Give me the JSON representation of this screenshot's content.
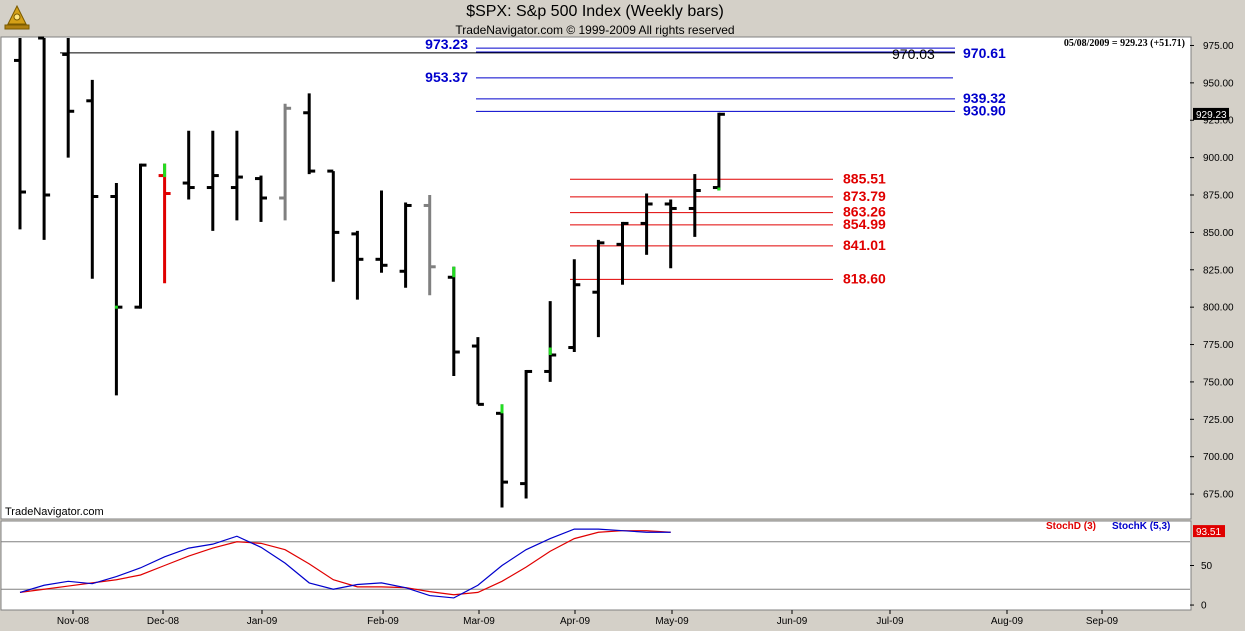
{
  "chart_data": {
    "type": "ohlc",
    "title": "$SPX:  S&p 500 Index  (Weekly bars)",
    "subtitle": "TradeNavigator.com © 1999-2009 All rights reserved",
    "watermark": "TradeNavigator.com",
    "info": "05/08/2009 = 929.23 (+51.71)",
    "last_price": "929.23",
    "ylim": [
      659,
      980
    ],
    "yticks": [
      675,
      700,
      725,
      750,
      775,
      800,
      825,
      850,
      875,
      900,
      925,
      950,
      975
    ],
    "xlabels": [
      "Nov-08",
      "Dec-08",
      "Jan-09",
      "Feb-09",
      "Mar-09",
      "Apr-09",
      "May-09",
      "Jun-09",
      "Jul-09",
      "Aug-09",
      "Sep-09"
    ],
    "bars": [
      {
        "o": 965,
        "h": 980,
        "l": 852,
        "c": 877,
        "color": "#000000"
      },
      {
        "o": 980,
        "h": 980,
        "l": 845,
        "c": 875,
        "color": "#000000"
      },
      {
        "o": 969,
        "h": 980,
        "l": 900,
        "c": 931,
        "color": "#000000"
      },
      {
        "o": 938,
        "h": 952,
        "l": 819,
        "c": 874,
        "color": "#000000"
      },
      {
        "o": 874,
        "h": 883,
        "l": 741,
        "c": 800,
        "color": "#000000"
      },
      {
        "o": 800,
        "h": 896,
        "l": 799,
        "c": 895,
        "color": "#000000"
      },
      {
        "o": 888,
        "h": 896,
        "l": 816,
        "c": 876,
        "color": "#e00000"
      },
      {
        "o": 883,
        "h": 918,
        "l": 872,
        "c": 880,
        "color": "#000000"
      },
      {
        "o": 880,
        "h": 918,
        "l": 851,
        "c": 888,
        "color": "#000000"
      },
      {
        "o": 880,
        "h": 918,
        "l": 858,
        "c": 887,
        "color": "#000000"
      },
      {
        "o": 886,
        "h": 888,
        "l": 857,
        "c": 873,
        "color": "#000000"
      },
      {
        "o": 873,
        "h": 936,
        "l": 858,
        "c": 933,
        "color": "#808080"
      },
      {
        "o": 930,
        "h": 943,
        "l": 889,
        "c": 891,
        "color": "#000000"
      },
      {
        "o": 891,
        "h": 891,
        "l": 817,
        "c": 850,
        "color": "#000000"
      },
      {
        "o": 849,
        "h": 851,
        "l": 805,
        "c": 832,
        "color": "#000000"
      },
      {
        "o": 832,
        "h": 878,
        "l": 823,
        "c": 828,
        "color": "#000000"
      },
      {
        "o": 824,
        "h": 870,
        "l": 813,
        "c": 868,
        "color": "#000000"
      },
      {
        "o": 868,
        "h": 875,
        "l": 808,
        "c": 827,
        "color": "#808080"
      },
      {
        "o": 820,
        "h": 827,
        "l": 754,
        "c": 770,
        "color": "#000000"
      },
      {
        "o": 774,
        "h": 780,
        "l": 735,
        "c": 735,
        "color": "#000000"
      },
      {
        "o": 729,
        "h": 735,
        "l": 666,
        "c": 683,
        "color": "#000000"
      },
      {
        "o": 682,
        "h": 758,
        "l": 672,
        "c": 757,
        "color": "#000000"
      },
      {
        "o": 757,
        "h": 804,
        "l": 750,
        "c": 768,
        "color": "#000000"
      },
      {
        "o": 773,
        "h": 832,
        "l": 770,
        "c": 815,
        "color": "#000000"
      },
      {
        "o": 810,
        "h": 845,
        "l": 780,
        "c": 843,
        "color": "#000000"
      },
      {
        "o": 842,
        "h": 857,
        "l": 815,
        "c": 856,
        "color": "#000000"
      },
      {
        "o": 856,
        "h": 876,
        "l": 835,
        "c": 869,
        "color": "#000000"
      },
      {
        "o": 869,
        "h": 872,
        "l": 826,
        "c": 866,
        "color": "#000000"
      },
      {
        "o": 866,
        "h": 889,
        "l": 847,
        "c": 878,
        "color": "#000000"
      },
      {
        "o": 880,
        "h": 930,
        "l": 878,
        "c": 929,
        "color": "#000000"
      }
    ],
    "green_ticks": [
      {
        "bar": 4,
        "from": 799,
        "to": 801
      },
      {
        "bar": 6,
        "from": 887,
        "to": 896
      },
      {
        "bar": 18,
        "from": 820,
        "to": 827
      },
      {
        "bar": 20,
        "from": 729,
        "to": 735
      },
      {
        "bar": 22,
        "from": 768,
        "to": 773
      },
      {
        "bar": 29,
        "from": 878,
        "to": 880
      }
    ],
    "levels": [
      {
        "value": 973.23,
        "label": "973.23",
        "side": "left",
        "color": "#0000cc"
      },
      {
        "value": 970.61,
        "label": "970.61",
        "side": "right",
        "color": "#0000cc"
      },
      {
        "value": 970.03,
        "label": "970.03",
        "side": "mid",
        "color": "#000000"
      },
      {
        "value": 953.37,
        "label": "953.37",
        "side": "left",
        "color": "#0000cc"
      },
      {
        "value": 939.32,
        "label": "939.32",
        "side": "right",
        "color": "#0000cc"
      },
      {
        "value": 930.9,
        "label": "930.90",
        "side": "right",
        "color": "#0000cc"
      },
      {
        "value": 885.51,
        "label": "885.51",
        "side": "right",
        "color": "#e00000"
      },
      {
        "value": 873.79,
        "label": "873.79",
        "side": "right",
        "color": "#e00000"
      },
      {
        "value": 863.26,
        "label": "863.26",
        "side": "right",
        "color": "#e00000"
      },
      {
        "value": 854.99,
        "label": "854.99",
        "side": "right",
        "color": "#e00000"
      },
      {
        "value": 841.01,
        "label": "841.01",
        "side": "right",
        "color": "#e00000"
      },
      {
        "value": 818.6,
        "label": "818.60",
        "side": "right",
        "color": "#e00000"
      }
    ],
    "stoch": {
      "yticks": [
        0,
        50
      ],
      "ref_lines": [
        80,
        20
      ],
      "last_value": "93.51",
      "d_label": "StochD (3)",
      "k_label": "StochK (5,3)",
      "d_color": "#e00000",
      "k_color": "#0000cc",
      "stoch_k": [
        16,
        25,
        30,
        27,
        36,
        47,
        61,
        72,
        77,
        87,
        73,
        53,
        28,
        20,
        26,
        28,
        22,
        12,
        9,
        25,
        50,
        70,
        84,
        96,
        96,
        94,
        92,
        92
      ],
      "stoch_d": [
        16,
        20,
        24,
        28,
        32,
        38,
        50,
        62,
        72,
        80,
        78,
        70,
        52,
        32,
        23,
        23,
        22,
        17,
        13,
        16,
        30,
        48,
        68,
        84,
        92,
        94,
        94,
        92
      ]
    }
  }
}
